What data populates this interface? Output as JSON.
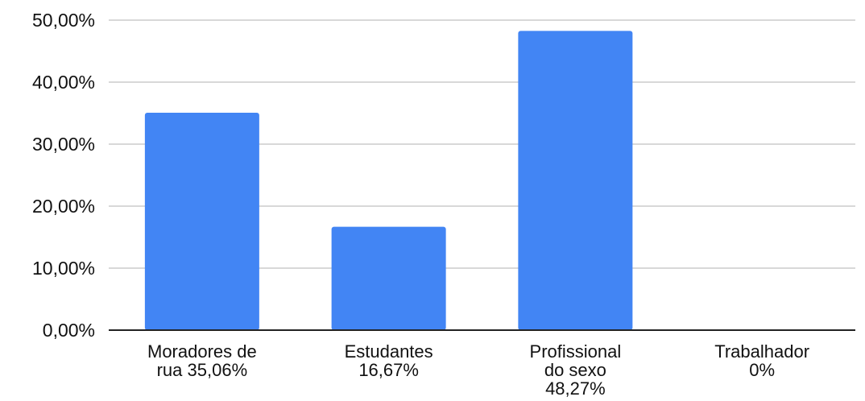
{
  "chart_data": {
    "type": "bar",
    "categories": [
      [
        "Moradores  de",
        "rua 35,06%"
      ],
      [
        "Estudantes",
        "16,67%"
      ],
      [
        "Profissional",
        "do sexo",
        "48,27%"
      ],
      [
        "Trabalhador",
        "0%"
      ]
    ],
    "values": [
      35.06,
      16.67,
      48.27,
      0
    ],
    "yticks": [
      "0,00%",
      "10,00%",
      "20,00%",
      "30,00%",
      "40,00%",
      "50,00%"
    ],
    "ylim": [
      0,
      50
    ],
    "grid": true,
    "colors": {
      "bar": "#4285f4",
      "grid": "#cccccc",
      "axis": "#222222"
    }
  }
}
